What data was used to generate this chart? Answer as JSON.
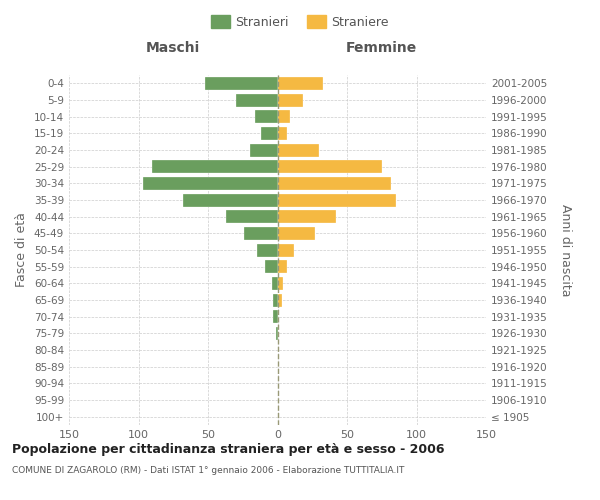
{
  "age_groups": [
    "100+",
    "95-99",
    "90-94",
    "85-89",
    "80-84",
    "75-79",
    "70-74",
    "65-69",
    "60-64",
    "55-59",
    "50-54",
    "45-49",
    "40-44",
    "35-39",
    "30-34",
    "25-29",
    "20-24",
    "15-19",
    "10-14",
    "5-9",
    "0-4"
  ],
  "birth_years": [
    "≤ 1905",
    "1906-1910",
    "1911-1915",
    "1916-1920",
    "1921-1925",
    "1926-1930",
    "1931-1935",
    "1936-1940",
    "1941-1945",
    "1946-1950",
    "1951-1955",
    "1956-1960",
    "1961-1965",
    "1966-1970",
    "1971-1975",
    "1976-1980",
    "1981-1985",
    "1986-1990",
    "1991-1995",
    "1996-2000",
    "2001-2005"
  ],
  "maschi": [
    0,
    0,
    0,
    0,
    0,
    1,
    3,
    3,
    4,
    9,
    15,
    24,
    37,
    68,
    97,
    90,
    20,
    12,
    16,
    30,
    52
  ],
  "femmine": [
    0,
    0,
    0,
    0,
    0,
    0,
    0,
    3,
    4,
    7,
    12,
    27,
    42,
    85,
    82,
    75,
    30,
    7,
    9,
    18,
    33
  ],
  "color_maschi": "#6a9e5e",
  "color_femmine": "#f5b942",
  "bg_color": "#ffffff",
  "grid_color": "#cccccc",
  "title": "Popolazione per cittadinanza straniera per età e sesso - 2006",
  "subtitle": "COMUNE DI ZAGAROLO (RM) - Dati ISTAT 1° gennaio 2006 - Elaborazione TUTTITALIA.IT",
  "label_maschi": "Maschi",
  "label_femmine": "Femmine",
  "legend_stranieri": "Stranieri",
  "legend_straniere": "Straniere",
  "ylabel_left": "Fasce di età",
  "ylabel_right": "Anni di nascita",
  "xlim": 150
}
